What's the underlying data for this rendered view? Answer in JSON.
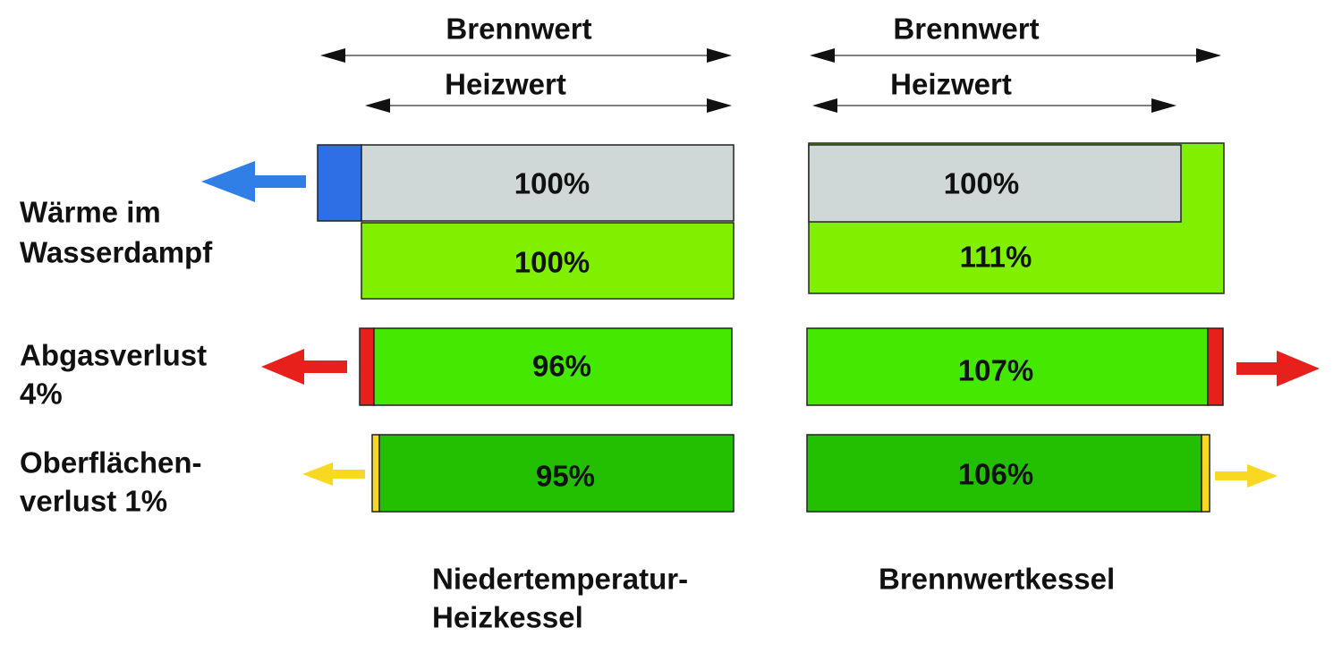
{
  "columns": [
    {
      "brennwert": "Brennwert",
      "heizwert": "Heizwert",
      "bars": [
        "100%",
        "100%",
        "96%",
        "95%"
      ],
      "caption": [
        "Niedertemperatur-",
        "Heizkessel"
      ]
    },
    {
      "brennwert": "Brennwert",
      "heizwert": "Heizwert",
      "bars": [
        "100%",
        "111%",
        "107%",
        "106%"
      ],
      "caption": [
        "Brennwertkessel"
      ]
    }
  ],
  "rows": [
    [
      "Wärme im",
      "Wasserdampf"
    ],
    [
      "Abgasverlust",
      "4%"
    ],
    [
      "Oberflächen-",
      "verlust 1%"
    ]
  ]
}
